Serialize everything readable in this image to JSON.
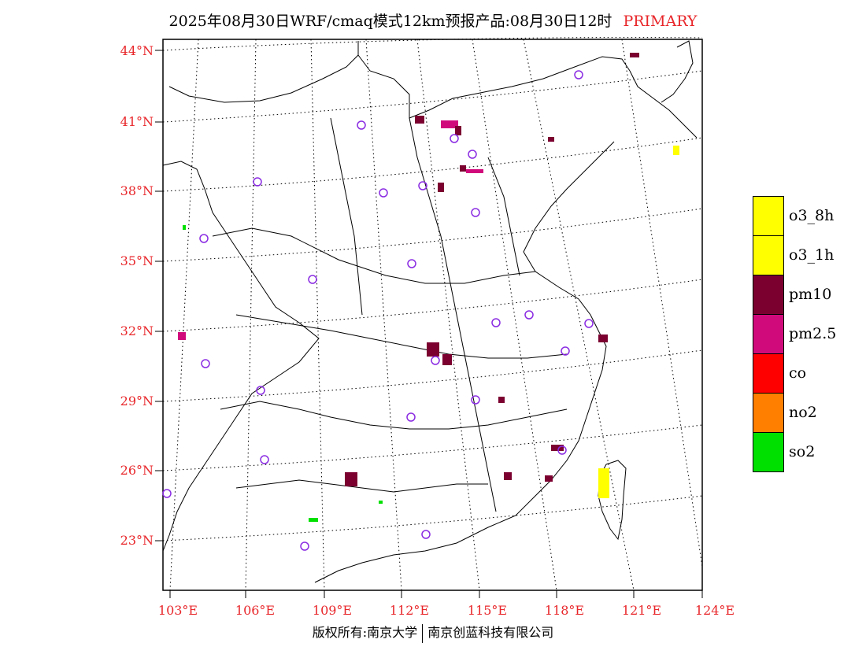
{
  "title": "2025年08月30日WRF/cmaq模式12km预报产品:08月30日12时",
  "subtitle": "PRIMARY",
  "footer": {
    "left": "版权所有:南京大学",
    "right": "南京创蓝科技有限公司"
  },
  "map": {
    "lat_labels": [
      "44°N",
      "41°N",
      "38°N",
      "35°N",
      "32°N",
      "29°N",
      "26°N",
      "23°N"
    ],
    "lon_labels": [
      "103°E",
      "106°E",
      "109°E",
      "112°E",
      "115°E",
      "118°E",
      "121°E",
      "124°E"
    ],
    "label_color": "#e8262a",
    "site_marker_color": "#8a2be2",
    "graticule": "dotted"
  },
  "legend": [
    {
      "label": "o3_8h",
      "color": "#ffff00"
    },
    {
      "label": "o3_1h",
      "color": "#ffff00"
    },
    {
      "label": "pm10",
      "color": "#7b0030"
    },
    {
      "label": "pm2.5",
      "color": "#d10a7c"
    },
    {
      "label": "co",
      "color": "#ff0000"
    },
    {
      "label": "no2",
      "color": "#ff7f00"
    },
    {
      "label": "so2",
      "color": "#00e000"
    }
  ]
}
